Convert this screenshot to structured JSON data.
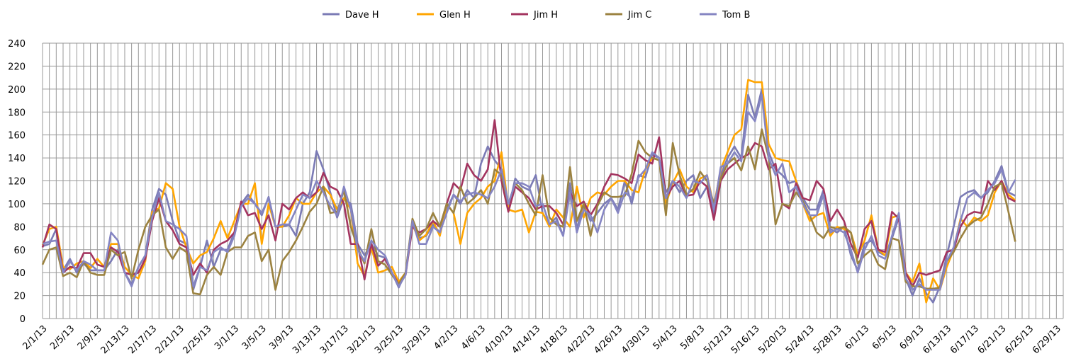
{
  "chart_data": {
    "type": "line",
    "grid": true,
    "legend": "top",
    "ylim": [
      0,
      240
    ],
    "yticks": [
      0,
      20,
      40,
      60,
      80,
      100,
      120,
      140,
      160,
      180,
      200,
      220,
      240
    ],
    "categories": [
      "2/1/13",
      null,
      null,
      null,
      "2/5/13",
      null,
      null,
      null,
      "2/9/13",
      null,
      null,
      null,
      "2/13/13",
      null,
      null,
      null,
      "2/17/13",
      null,
      null,
      null,
      "2/21/13",
      null,
      null,
      null,
      "2/25/13",
      null,
      null,
      null,
      "3/1/13",
      null,
      null,
      null,
      "3/5/13",
      null,
      null,
      null,
      "3/9/13",
      null,
      null,
      null,
      "3/13/13",
      null,
      null,
      null,
      "3/17/13",
      null,
      null,
      null,
      "3/21/13",
      null,
      null,
      null,
      "3/25/13",
      null,
      null,
      null,
      "3/29/13",
      null,
      null,
      null,
      "4/2/13",
      null,
      null,
      null,
      "4/6/13",
      null,
      null,
      null,
      "4/10/13",
      null,
      null,
      null,
      "4/14/13",
      null,
      null,
      null,
      "4/18/13",
      null,
      null,
      null,
      "4/22/13",
      null,
      null,
      null,
      "4/26/13",
      null,
      null,
      null,
      "4/30/13",
      null,
      null,
      null,
      "5/4/13",
      null,
      null,
      null,
      "5/8/13",
      null,
      null,
      null,
      "5/12/13",
      null,
      null,
      null,
      "5/16/13",
      null,
      null,
      null,
      "5/20/13",
      null,
      null,
      null,
      "5/24/13",
      null,
      null,
      null,
      "5/28/13",
      null,
      null,
      null,
      "6/1/13",
      null,
      null,
      null,
      "6/5/13",
      null,
      null,
      null,
      "6/9/13",
      null,
      null,
      null,
      "6/13/13",
      null,
      null,
      null,
      "6/17/13",
      null,
      null,
      null,
      "6/21/13",
      null,
      null,
      null,
      "6/25/13",
      null,
      null,
      null,
      "6/29/13",
      null
    ],
    "series": [
      {
        "name": "Dave H",
        "color": "#7b7bb5",
        "values": [
          63,
          65,
          78,
          42,
          52,
          40,
          48,
          42,
          42,
          42,
          50,
          60,
          40,
          30,
          45,
          55,
          95,
          113,
          108,
          85,
          68,
          65,
          25,
          45,
          68,
          45,
          60,
          60,
          75,
          100,
          108,
          100,
          90,
          106,
          80,
          80,
          82,
          72,
          100,
          110,
          146,
          130,
          110,
          88,
          105,
          100,
          65,
          55,
          65,
          55,
          53,
          40,
          27,
          40,
          85,
          70,
          72,
          82,
          75,
          95,
          108,
          100,
          112,
          105,
          135,
          150,
          138,
          130,
          95,
          122,
          115,
          112,
          125,
          92,
          82,
          88,
          72,
          118,
          78,
          100,
          85,
          92,
          100,
          105,
          95,
          120,
          100,
          125,
          123,
          143,
          140,
          110,
          120,
          110,
          120,
          125,
          105,
          115,
          90,
          125,
          140,
          150,
          140,
          195,
          175,
          200,
          145,
          130,
          125,
          118,
          120,
          105,
          95,
          95,
          112,
          78,
          75,
          80,
          55,
          42,
          65,
          68,
          58,
          55,
          70,
          88,
          35,
          20,
          35,
          22,
          14,
          28,
          55,
          80,
          106,
          110,
          112,
          105,
          110,
          120,
          133,
          110,
          107,
          null,
          null,
          null,
          null,
          null,
          null,
          null
        ]
      },
      {
        "name": "Glen H",
        "color": "#ffa500",
        "values": [
          64,
          78,
          80,
          45,
          43,
          48,
          50,
          44,
          52,
          45,
          65,
          65,
          45,
          38,
          35,
          50,
          93,
          96,
          118,
          113,
          80,
          62,
          48,
          55,
          58,
          70,
          85,
          70,
          85,
          100,
          100,
          118,
          65,
          100,
          80,
          80,
          90,
          105,
          100,
          100,
          110,
          115,
          108,
          95,
          105,
          95,
          48,
          37,
          62,
          40,
          42,
          45,
          32,
          40,
          82,
          68,
          73,
          85,
          72,
          100,
          92,
          65,
          92,
          100,
          105,
          115,
          120,
          145,
          95,
          93,
          95,
          75,
          93,
          92,
          80,
          95,
          88,
          80,
          115,
          88,
          105,
          110,
          108,
          115,
          120,
          120,
          112,
          110,
          130,
          140,
          138,
          100,
          118,
          130,
          115,
          110,
          122,
          125,
          98,
          130,
          145,
          160,
          165,
          208,
          206,
          206,
          152,
          140,
          138,
          137,
          120,
          100,
          85,
          90,
          92,
          72,
          80,
          78,
          75,
          55,
          68,
          90,
          60,
          55,
          88,
          90,
          40,
          32,
          48,
          14,
          35,
          25,
          45,
          60,
          87,
          80,
          88,
          85,
          90,
          110,
          120,
          108,
          103,
          null,
          null,
          null,
          null,
          null,
          null,
          null
        ]
      },
      {
        "name": "Jim H",
        "color": "#a3345f",
        "values": [
          62,
          82,
          78,
          40,
          45,
          44,
          57,
          57,
          47,
          45,
          62,
          58,
          40,
          38,
          40,
          52,
          85,
          105,
          85,
          77,
          65,
          62,
          38,
          48,
          40,
          60,
          65,
          68,
          75,
          102,
          90,
          92,
          78,
          90,
          68,
          100,
          95,
          105,
          110,
          105,
          110,
          127,
          115,
          112,
          100,
          65,
          65,
          34,
          65,
          46,
          52,
          40,
          30,
          38,
          80,
          75,
          78,
          85,
          80,
          100,
          118,
          112,
          135,
          125,
          120,
          130,
          173,
          120,
          93,
          115,
          110,
          105,
          95,
          98,
          98,
          92,
          82,
          110,
          98,
          102,
          90,
          100,
          115,
          126,
          125,
          122,
          118,
          143,
          138,
          135,
          158,
          105,
          115,
          120,
          107,
          108,
          120,
          115,
          86,
          120,
          130,
          135,
          140,
          143,
          153,
          150,
          130,
          135,
          100,
          96,
          118,
          105,
          103,
          120,
          113,
          85,
          95,
          85,
          65,
          53,
          78,
          85,
          60,
          58,
          93,
          87,
          40,
          28,
          40,
          38,
          40,
          42,
          58,
          60,
          80,
          90,
          93,
          92,
          120,
          112,
          120,
          105,
          102,
          null,
          null,
          null,
          null,
          null,
          null,
          null
        ]
      },
      {
        "name": "Jim C",
        "color": "#9b8240",
        "values": [
          47,
          60,
          62,
          37,
          40,
          36,
          50,
          40,
          38,
          38,
          60,
          55,
          58,
          35,
          60,
          80,
          90,
          95,
          62,
          52,
          62,
          58,
          22,
          21,
          38,
          45,
          38,
          58,
          62,
          62,
          72,
          75,
          50,
          60,
          25,
          50,
          58,
          68,
          80,
          93,
          100,
          115,
          92,
          93,
          112,
          80,
          62,
          48,
          78,
          50,
          47,
          38,
          30,
          40,
          87,
          72,
          78,
          92,
          80,
          100,
          92,
          115,
          100,
          105,
          112,
          100,
          130,
          125,
          100,
          118,
          112,
          100,
          90,
          125,
          88,
          82,
          80,
          132,
          85,
          100,
          72,
          98,
          110,
          106,
          106,
          107,
          126,
          155,
          145,
          140,
          138,
          90,
          153,
          125,
          108,
          113,
          128,
          120,
          100,
          122,
          135,
          140,
          129,
          150,
          130,
          165,
          140,
          82,
          100,
          98,
          110,
          102,
          90,
          75,
          70,
          80,
          78,
          80,
          75,
          48,
          55,
          60,
          47,
          43,
          70,
          68,
          32,
          28,
          28,
          26,
          26,
          27,
          50,
          58,
          70,
          80,
          85,
          88,
          100,
          115,
          118,
          93,
          67,
          null,
          null,
          null,
          null,
          null,
          null,
          null
        ]
      },
      {
        "name": "Tom B",
        "color": "#8585c2",
        "values": [
          65,
          67,
          68,
          40,
          50,
          42,
          50,
          47,
          42,
          42,
          75,
          68,
          40,
          28,
          45,
          55,
          88,
          110,
          85,
          82,
          78,
          72,
          28,
          45,
          42,
          58,
          62,
          58,
          72,
          98,
          105,
          100,
          92,
          105,
          80,
          82,
          82,
          95,
          108,
          105,
          120,
          110,
          98,
          90,
          115,
          95,
          60,
          50,
          68,
          60,
          55,
          40,
          28,
          38,
          85,
          65,
          65,
          80,
          75,
          92,
          108,
          102,
          108,
          110,
          108,
          105,
          115,
          130,
          100,
          118,
          118,
          115,
          98,
          100,
          82,
          85,
          72,
          110,
          75,
          95,
          90,
          75,
          95,
          105,
          92,
          110,
          105,
          123,
          130,
          145,
          140,
          105,
          120,
          115,
          105,
          120,
          118,
          125,
          95,
          132,
          135,
          145,
          137,
          180,
          172,
          195,
          140,
          125,
          135,
          110,
          115,
          100,
          90,
          90,
          108,
          75,
          78,
          75,
          60,
          40,
          60,
          72,
          55,
          52,
          72,
          92,
          35,
          25,
          30,
          25,
          25,
          25,
          50,
          62,
          85,
          105,
          110,
          105,
          112,
          118,
          130,
          110,
          121,
          null,
          null,
          null,
          null,
          null,
          null,
          null
        ]
      }
    ]
  }
}
